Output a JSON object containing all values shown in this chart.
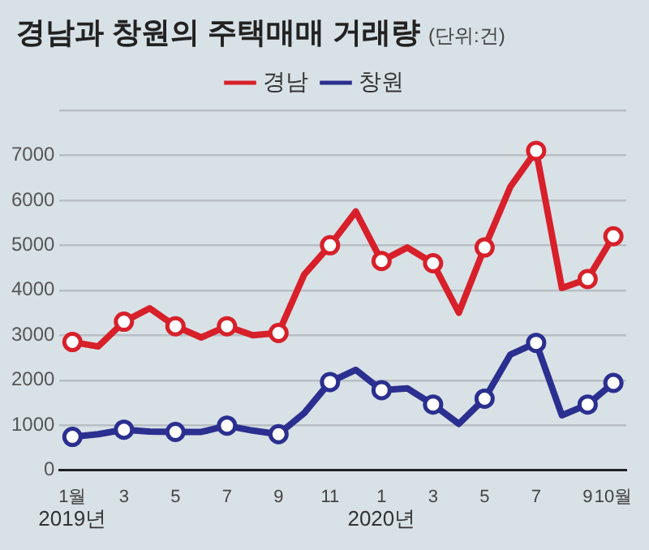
{
  "chart_data": {
    "type": "line",
    "title": "경남과 창원의 주택매매 거래량",
    "subtitle": "(단위:건)",
    "categories": [
      "1월",
      null,
      "3",
      null,
      "5",
      null,
      "7",
      null,
      "9",
      null,
      "11",
      null,
      "1",
      null,
      "3",
      null,
      "5",
      null,
      "7",
      null,
      "9",
      "10월"
    ],
    "series": [
      {
        "name": "경남",
        "color": "#d7202a",
        "values": [
          2850,
          2750,
          3300,
          3600,
          3200,
          2950,
          3200,
          3000,
          3050,
          4350,
          5000,
          5750,
          4650,
          4950,
          4600,
          3500,
          4950,
          6300,
          7100,
          4050,
          4250,
          5200
        ]
      },
      {
        "name": "창원",
        "color": "#2b2f8f",
        "values": [
          740,
          800,
          900,
          860,
          850,
          850,
          990,
          880,
          800,
          1270,
          1960,
          2230,
          1780,
          1820,
          1460,
          1030,
          1590,
          2570,
          2830,
          1220,
          1460,
          1940
        ]
      }
    ],
    "annotations": [
      "2019년",
      "2020년"
    ],
    "ylim": [
      0,
      8000
    ],
    "yticks": [
      0,
      1000,
      2000,
      3000,
      4000,
      5000,
      6000,
      7000,
      {
        "value": 8000,
        "label": null
      }
    ],
    "grid": "y",
    "legend": "top",
    "marker": "circle",
    "line_style": "solid"
  }
}
